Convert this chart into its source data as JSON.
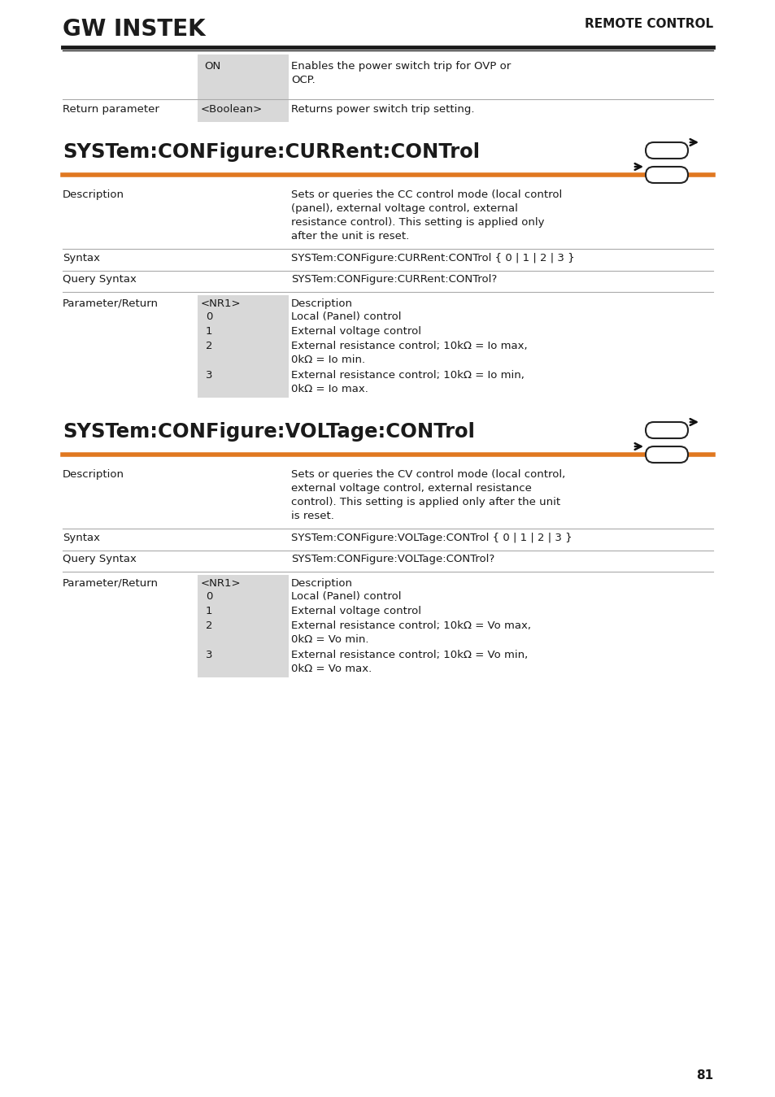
{
  "bg_color": "#ffffff",
  "text_color": "#1a1a1a",
  "gray_bg": "#d8d8d8",
  "orange_line": "#e07820",
  "page_number": "81",
  "remote_control_text": "REMOTE CONTROL",
  "section1": {
    "title": "SYSTem:CONFigure:CURRent:CONTrol",
    "description_label": "Description",
    "description_text": "Sets or queries the CC control mode (local control\n(panel), external voltage control, external\nresistance control). This setting is applied only\nafter the unit is reset.",
    "syntax_label": "Syntax",
    "syntax_text": "SYSTem:CONFigure:CURRent:CONTrol { 0 | 1 | 2 | 3 }",
    "query_label": "Query Syntax",
    "query_text": "SYSTem:CONFigure:CURRent:CONTrol?",
    "param_label": "Parameter/Return",
    "param_type": "<NR1>",
    "param_header": "Description",
    "params": [
      [
        "0",
        "Local (Panel) control"
      ],
      [
        "1",
        "External voltage control"
      ],
      [
        "2",
        "External resistance control; 10kΩ = Io max,\n0kΩ = Io min."
      ],
      [
        "3",
        "External resistance control; 10kΩ = Io min,\n0kΩ = Io max."
      ]
    ]
  },
  "section2": {
    "title": "SYSTem:CONFigure:VOLTage:CONTrol",
    "description_label": "Description",
    "description_text": "Sets or queries the CV control mode (local control,\nexternal voltage control, external resistance\ncontrol). This setting is applied only after the unit\nis reset.",
    "syntax_label": "Syntax",
    "syntax_text": "SYSTem:CONFigure:VOLTage:CONTrol { 0 | 1 | 2 | 3 }",
    "query_label": "Query Syntax",
    "query_text": "SYSTem:CONFigure:VOLTage:CONTrol?",
    "param_label": "Parameter/Return",
    "param_type": "<NR1>",
    "param_header": "Description",
    "params": [
      [
        "0",
        "Local (Panel) control"
      ],
      [
        "1",
        "External voltage control"
      ],
      [
        "2",
        "External resistance control; 10kΩ = Vo max,\n0kΩ = Vo min."
      ],
      [
        "3",
        "External resistance control; 10kΩ = Vo min,\n0kΩ = Vo max."
      ]
    ]
  }
}
